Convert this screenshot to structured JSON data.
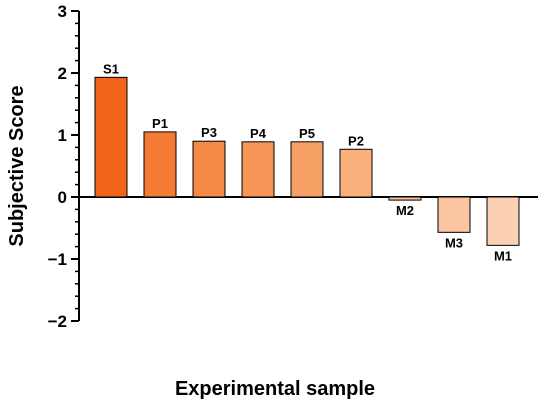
{
  "chart_data": {
    "type": "bar",
    "categories": [
      "S1",
      "P1",
      "P3",
      "P4",
      "P5",
      "P2",
      "M2",
      "M3",
      "M1"
    ],
    "values": [
      1.93,
      1.05,
      0.9,
      0.89,
      0.89,
      0.77,
      -0.05,
      -0.57,
      -0.78
    ],
    "colors": [
      "#f26419",
      "#f47a35",
      "#f58a47",
      "#f69555",
      "#f7a066",
      "#f9b07c",
      "#fbbf94",
      "#fbc5a2",
      "#fcd0b3"
    ],
    "xlabel": "Experimental sample",
    "ylabel": "Subjective Score",
    "ylim": [
      -2,
      3
    ],
    "yticks": [
      -2,
      -1,
      0,
      1,
      2,
      3
    ],
    "ytick_labels": [
      "−2",
      "−1",
      "0",
      "1",
      "2",
      "3"
    ],
    "grid": false,
    "legend": "none"
  }
}
